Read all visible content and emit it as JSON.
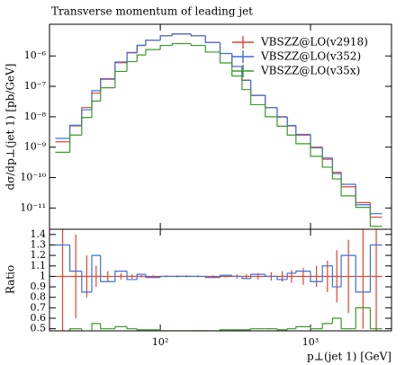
{
  "chart_data": [
    {
      "type": "histogram",
      "title": "Transverse momentum of leading jet",
      "ylabel": "dσ/dp⊥(jet 1) [pb/GeV]",
      "bins": [
        20,
        25,
        30,
        35,
        40,
        50,
        60,
        70,
        80,
        100,
        120,
        140,
        160,
        200,
        250,
        300,
        350,
        400,
        500,
        600,
        700,
        800,
        1000,
        1200,
        1400,
        1600,
        2000,
        2500,
        3000
      ],
      "series": [
        {
          "name": "VBSZZ@LO(v2918)",
          "color": "#e8412c",
          "values": [
            1.5e-09,
            5e-09,
            2e-08,
            6e-08,
            1.8e-07,
            6e-07,
            1.3e-06,
            2.2e-06,
            3.3e-06,
            4.6e-06,
            5.3e-06,
            5.3e-06,
            4.6e-06,
            2.8e-06,
            1.2e-06,
            4.5e-07,
            1.6e-07,
            5e-08,
            2e-08,
            1e-08,
            5e-09,
            2.5e-09,
            1e-09,
            4e-10,
            1.5e-10,
            5e-11,
            1.5e-11,
            5e-12
          ]
        },
        {
          "name": "VBSZZ@LO(v352)",
          "color": "#3b6fe0",
          "values": [
            1.95e-09,
            5.25e-09,
            1.7e-08,
            7.2e-08,
            1.71e-07,
            6.3e-07,
            1.26e-06,
            2.24e-06,
            3.27e-06,
            4.6e-06,
            5.3e-06,
            5.3e-06,
            4.6e-06,
            2.77e-06,
            1.21e-06,
            4.5e-07,
            1.57e-07,
            5.1e-08,
            2e-08,
            9.7e-09,
            5.15e-09,
            2.63e-09,
            9.5e-10,
            4.4e-10,
            1.35e-10,
            6e-11,
            1.28e-11,
            6.5e-12
          ]
        },
        {
          "name": "VBSZZ@LO(v35x)",
          "color": "#3a9a2a",
          "values": [
            6.8e-10,
            2.5e-09,
            9.4e-09,
            3.3e-08,
            9e-08,
            3.1e-07,
            6.5e-07,
            1.08e-06,
            1.62e-06,
            2.21e-06,
            2.54e-06,
            2.54e-06,
            2.21e-06,
            1.34e-06,
            5.9e-07,
            2.2e-07,
            7.8e-08,
            2.5e-08,
            1e-08,
            4.9e-09,
            2.5e-09,
            1.3e-09,
            5e-10,
            2.2e-10,
            9e-11,
            2.5e-11,
            1.05e-11,
            2.5e-12
          ]
        }
      ],
      "xlim": [
        18.3,
        3460
      ],
      "ylim": [
        2e-12,
        1.1e-05
      ],
      "logx": true,
      "logy": true,
      "yticks": [
        {
          "value": 1e-11,
          "label": "10⁻¹¹"
        },
        {
          "value": 1e-10,
          "label": "10⁻¹⁰"
        },
        {
          "value": 1e-09,
          "label": "10⁻⁹"
        },
        {
          "value": 1e-08,
          "label": "10⁻⁸"
        },
        {
          "value": 1e-07,
          "label": "10⁻⁷"
        },
        {
          "value": 1e-06,
          "label": "10⁻⁶"
        }
      ],
      "legend": "upper right"
    },
    {
      "type": "histogram",
      "ylabel": "Ratio",
      "xlabel": "p⊥(jet 1) [GeV]",
      "bins": [
        20,
        25,
        30,
        35,
        40,
        50,
        60,
        70,
        80,
        100,
        120,
        140,
        160,
        200,
        250,
        300,
        350,
        400,
        500,
        600,
        700,
        800,
        1000,
        1200,
        1400,
        1600,
        2000,
        2500,
        3000
      ],
      "series": [
        {
          "color": "#e8412c",
          "values": [
            1,
            1,
            1,
            1,
            1,
            1,
            1,
            1,
            1,
            1,
            1,
            1,
            1,
            1,
            1,
            1,
            1,
            1,
            1,
            1,
            1,
            1,
            1,
            1,
            1,
            1,
            1,
            1
          ],
          "errors": [
            0.8,
            0.4,
            0.2,
            0.1,
            0.05,
            0.03,
            0.02,
            0.01,
            0.01,
            0.01,
            0.01,
            0.01,
            0.01,
            0.01,
            0.01,
            0.02,
            0.02,
            0.03,
            0.04,
            0.05,
            0.06,
            0.08,
            0.1,
            0.15,
            0.25,
            0.35,
            0.5,
            0.8
          ]
        },
        {
          "color": "#3b6fe0",
          "values": [
            1.3,
            1.05,
            0.85,
            1.2,
            0.95,
            1.05,
            0.97,
            1.02,
            0.99,
            1,
            1,
            1,
            1,
            0.99,
            1.01,
            1,
            0.98,
            1.02,
            1,
            0.97,
            1.03,
            1.05,
            0.95,
            1.1,
            0.9,
            1.2,
            0.85,
            1.3
          ]
        },
        {
          "color": "#3a9a2a",
          "values": [
            0.45,
            0.5,
            0.47,
            0.55,
            0.5,
            0.52,
            0.5,
            0.49,
            0.49,
            0.48,
            0.48,
            0.48,
            0.48,
            0.48,
            0.49,
            0.49,
            0.49,
            0.5,
            0.5,
            0.49,
            0.5,
            0.52,
            0.5,
            0.55,
            0.6,
            0.5,
            0.7,
            0.5
          ]
        }
      ],
      "xlim": [
        18.3,
        3460
      ],
      "ylim": [
        0.48,
        1.45
      ],
      "logx": true,
      "xticks": [
        {
          "value": 100,
          "label": "10²"
        },
        {
          "value": 1000,
          "label": "10³"
        }
      ],
      "yticks": [
        0.5,
        0.6,
        0.7,
        0.8,
        0.9,
        1,
        1.1,
        1.2,
        1.3,
        1.4
      ]
    }
  ]
}
